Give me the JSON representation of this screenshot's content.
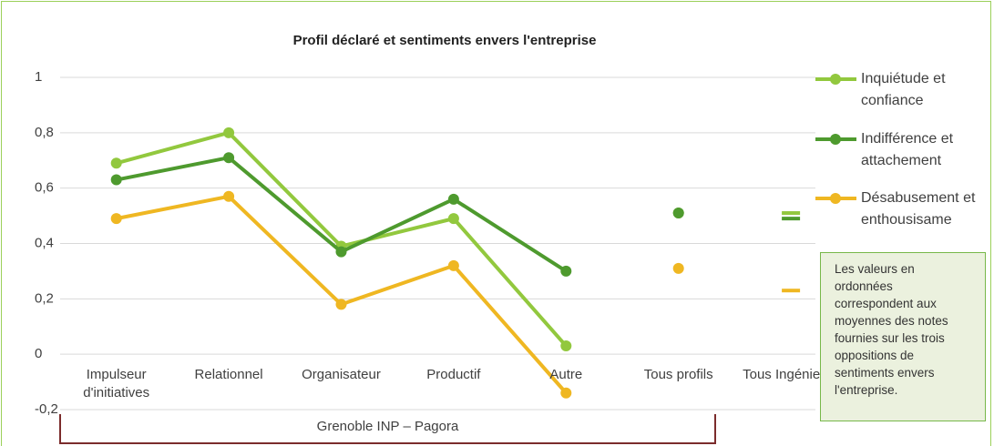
{
  "chart_data": {
    "type": "line",
    "title": "Profil déclaré et sentiments envers l'entreprise",
    "categories": [
      "Impulseur d'initiatives",
      "Relationnel",
      "Organisateur",
      "Productif",
      "Autre",
      "Tous profils",
      "Tous Ingénieurs"
    ],
    "groups": [
      {
        "label": "Grenoble INP – Pagora",
        "span": 5
      }
    ],
    "series": [
      {
        "name": "Inquiétude et confiance",
        "color": "#92c83e",
        "values": [
          0.69,
          0.8,
          0.39,
          0.49,
          0.03,
          0.51,
          0.51
        ],
        "markers": [
          "circle",
          "circle",
          "circle",
          "circle",
          "circle",
          "circle",
          "dash"
        ]
      },
      {
        "name": "Indifférence et attachement",
        "color": "#4e9a2e",
        "values": [
          0.63,
          0.71,
          0.37,
          0.56,
          0.3,
          0.51,
          0.49
        ],
        "markers": [
          "circle",
          "circle",
          "circle",
          "circle",
          "circle",
          "circle",
          "dash"
        ]
      },
      {
        "name": "Désabusement et enthousisame",
        "color": "#efb722",
        "values": [
          0.49,
          0.57,
          0.18,
          0.32,
          -0.14,
          0.31,
          0.23
        ],
        "markers": [
          "circle",
          "circle",
          "circle",
          "circle",
          "circle",
          "circle",
          "dash"
        ]
      }
    ],
    "ylim": [
      -0.2,
      1
    ],
    "yticks": [
      {
        "value": -0.2,
        "label": "-0,2"
      },
      0,
      {
        "value": 0.2,
        "label": "0,2"
      },
      {
        "value": 0.4,
        "label": "0,4"
      },
      {
        "value": 0.6,
        "label": "0,6"
      },
      {
        "value": 0.8,
        "label": "0,8"
      },
      1
    ],
    "grid": true,
    "legend": "right",
    "note": "Les valeurs en ordonnées correspondent aux moyennes des notes fournies sur les trois oppositions de sentiments envers l'entreprise."
  }
}
